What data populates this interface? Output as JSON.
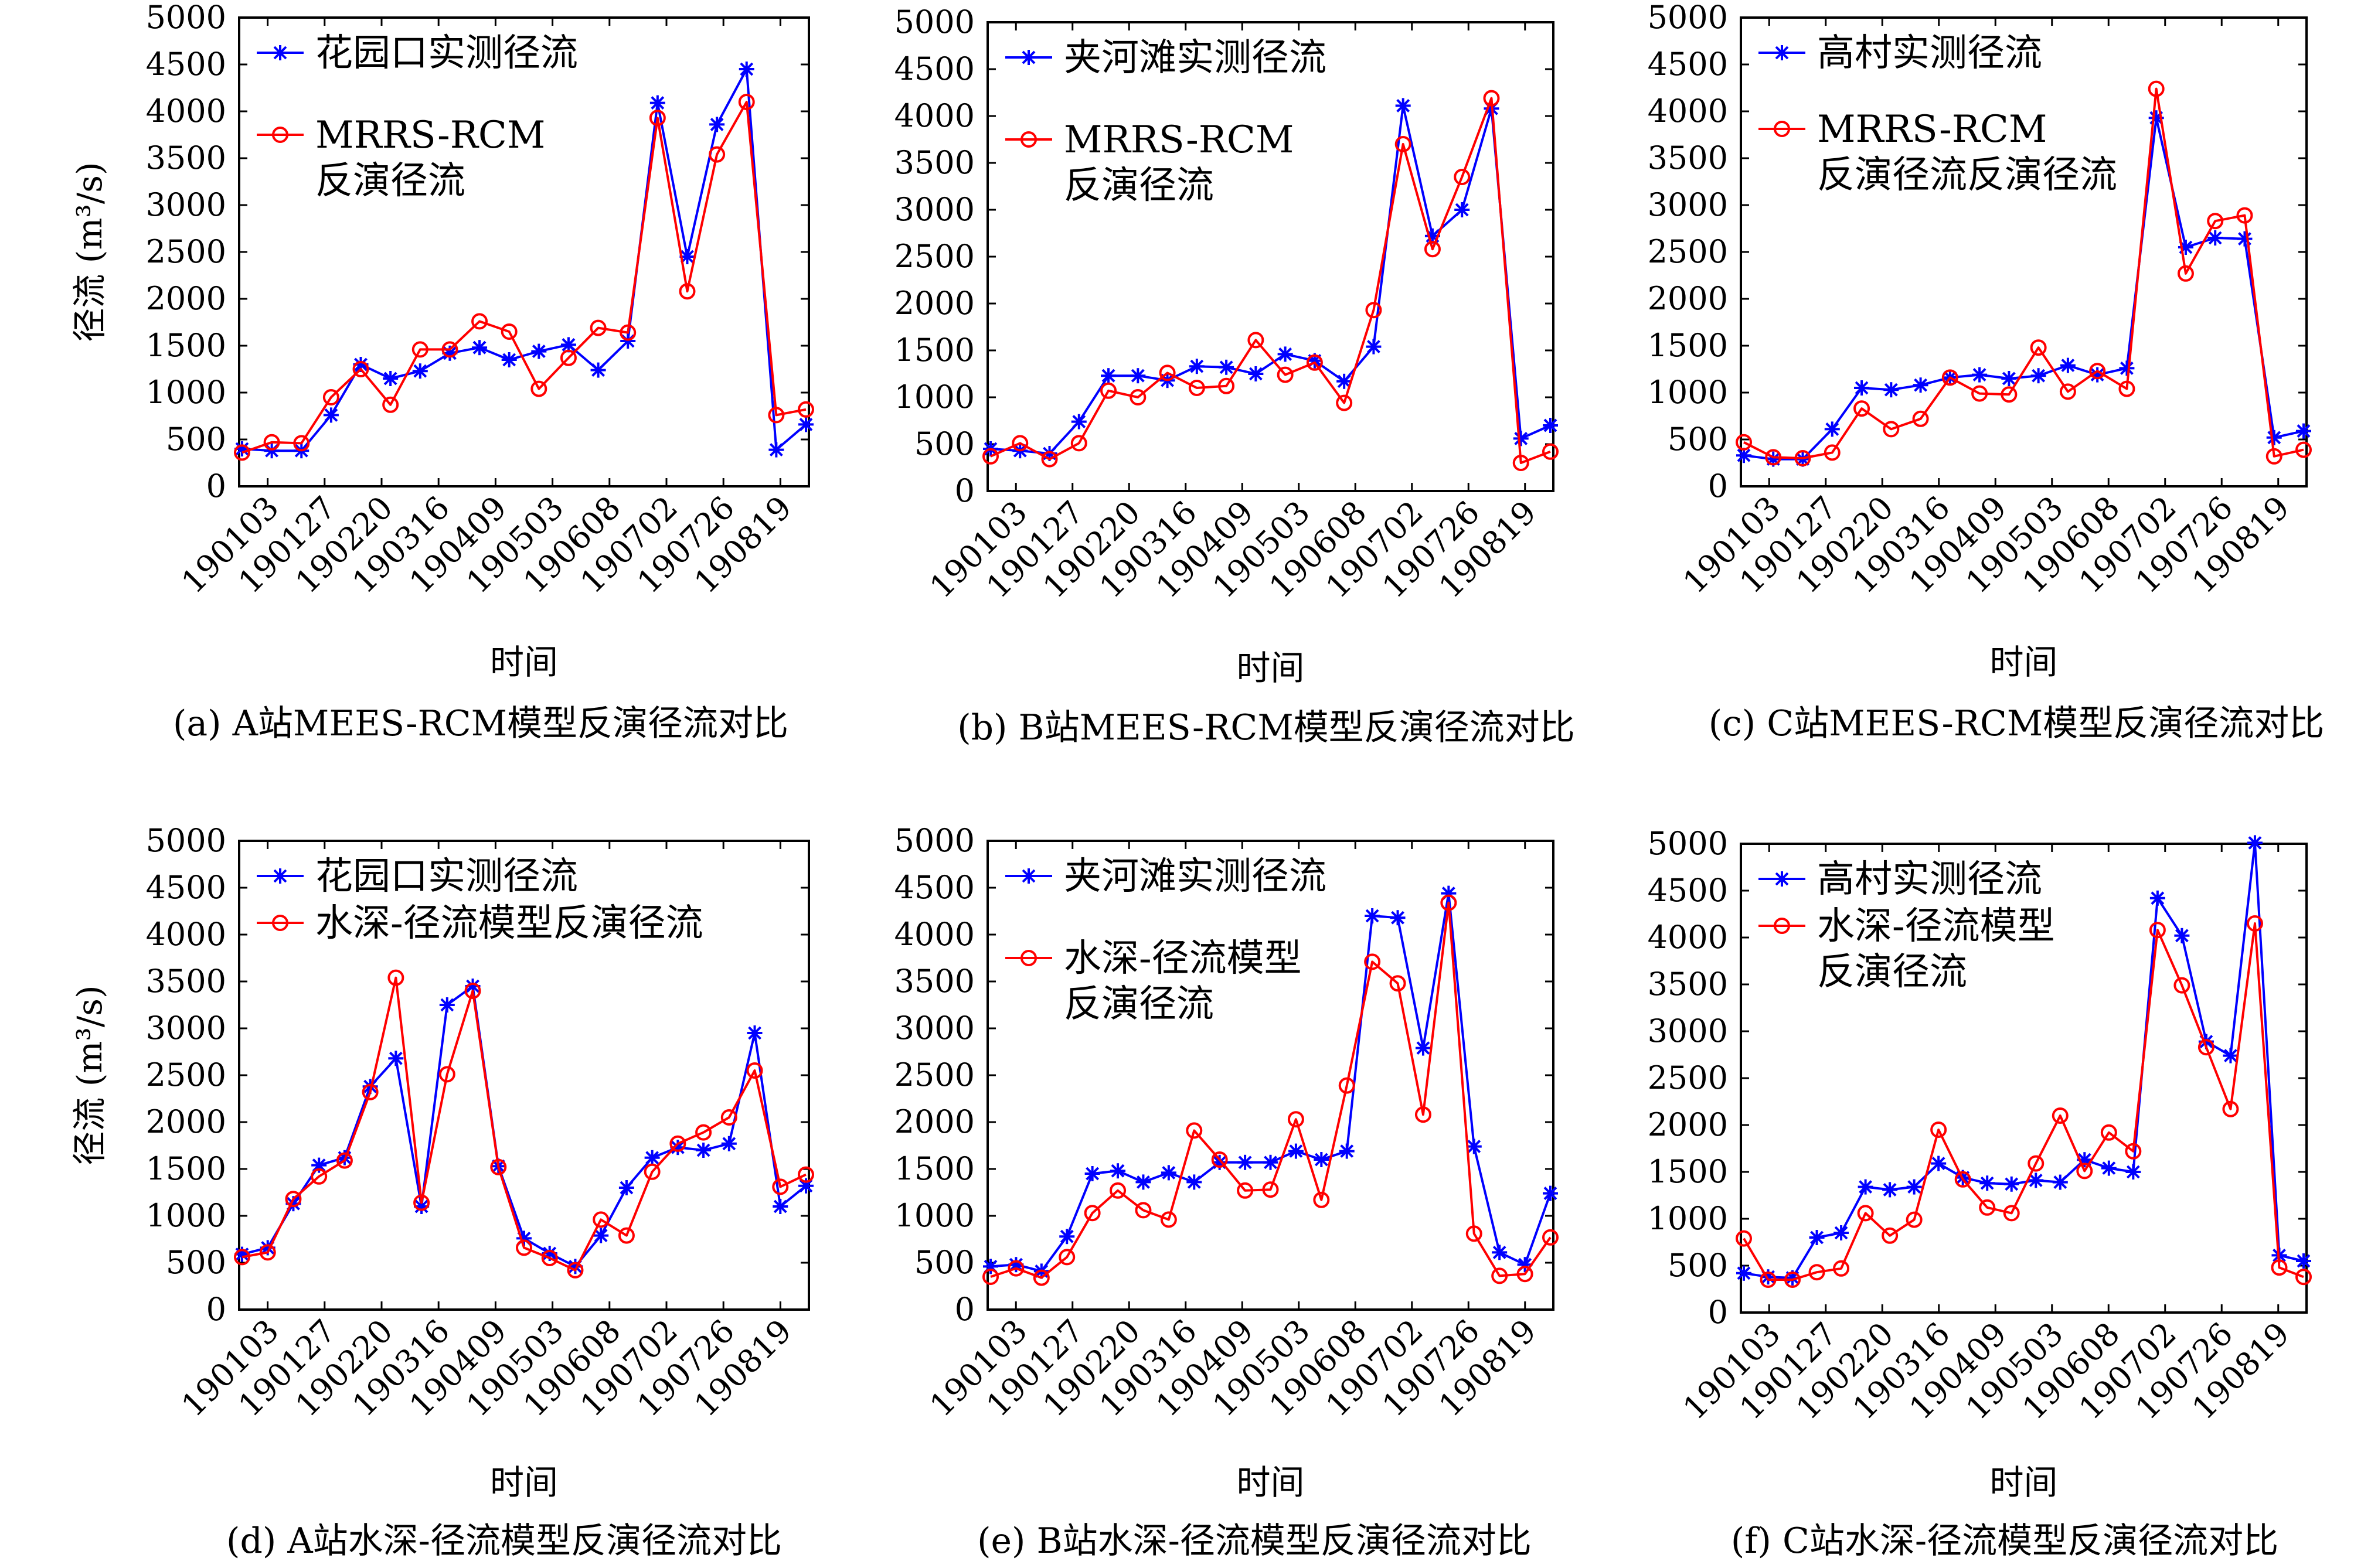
{
  "colors": {
    "observed": "#0000ff",
    "model": "#ff0000",
    "axis": "#000000"
  },
  "markers": {
    "observed": "asterisk",
    "model": "circle"
  },
  "chart_data": [
    {
      "type": "line",
      "caption": "(a) A站MEES-RCM模型反演径流对比",
      "xlabel": "时间",
      "ylabel": "径流 (m³/s)",
      "ylim": [
        0,
        5000
      ],
      "yticks": [
        0,
        500,
        1000,
        1500,
        2000,
        2500,
        3000,
        3500,
        4000,
        4500,
        5000
      ],
      "xticks": [
        "190103",
        "190127",
        "190220",
        "190316",
        "190409",
        "190503",
        "190608",
        "190702",
        "190726",
        "190819"
      ],
      "legend": {
        "position": "top-left",
        "entries": [
          "花园口实测径流",
          "MRRS-RCM\n反演径流"
        ]
      },
      "series": [
        {
          "name": "花园口实测径流",
          "values": [
            400,
            380,
            380,
            760,
            1300,
            1150,
            1230,
            1420,
            1480,
            1350,
            1440,
            1510,
            1240,
            1550,
            4090,
            2450,
            3860,
            4450,
            390,
            660
          ]
        },
        {
          "name": "MRRS-RCM\n反演径流",
          "values": [
            360,
            470,
            460,
            950,
            1250,
            870,
            1460,
            1460,
            1760,
            1650,
            1040,
            1370,
            1690,
            1640,
            3930,
            2080,
            3540,
            4100,
            760,
            820
          ]
        }
      ]
    },
    {
      "type": "line",
      "caption": "(b) B站MEES-RCM模型反演径流对比",
      "xlabel": "时间",
      "ylabel": "",
      "ylim": [
        0,
        5000
      ],
      "yticks": [
        0,
        500,
        1000,
        1500,
        2000,
        2500,
        3000,
        3500,
        4000,
        4500,
        5000
      ],
      "xticks": [
        "190103",
        "190127",
        "190220",
        "190316",
        "190409",
        "190503",
        "190608",
        "190702",
        "190726",
        "190819"
      ],
      "legend": {
        "position": "top-left",
        "entries": [
          "夹河滩实测径流",
          "MRRS-RCM\n反演径流"
        ]
      },
      "series": [
        {
          "name": "夹河滩实测径流",
          "values": [
            450,
            430,
            400,
            740,
            1230,
            1230,
            1180,
            1330,
            1320,
            1250,
            1460,
            1390,
            1170,
            1540,
            4110,
            2720,
            3000,
            4080,
            560,
            700
          ]
        },
        {
          "name": "MRRS-RCM\n反演径流",
          "values": [
            370,
            510,
            340,
            510,
            1070,
            1000,
            1260,
            1100,
            1120,
            1610,
            1240,
            1370,
            940,
            1930,
            3700,
            2580,
            3350,
            4190,
            300,
            420
          ]
        }
      ]
    },
    {
      "type": "line",
      "caption": "(c) C站MEES-RCM模型反演径流对比",
      "xlabel": "时间",
      "ylabel": "",
      "ylim": [
        0,
        5000
      ],
      "yticks": [
        0,
        500,
        1000,
        1500,
        2000,
        2500,
        3000,
        3500,
        4000,
        4500,
        5000
      ],
      "xticks": [
        "190103",
        "190127",
        "190220",
        "190316",
        "190409",
        "190503",
        "190608",
        "190702",
        "190726",
        "190819"
      ],
      "legend": {
        "position": "top-left",
        "entries": [
          "高村实测径流",
          "MRRS-RCM\n反演径流反演径流"
        ]
      },
      "series": [
        {
          "name": "高村实测径流",
          "values": [
            330,
            290,
            290,
            610,
            1050,
            1030,
            1080,
            1160,
            1190,
            1150,
            1180,
            1290,
            1190,
            1260,
            3930,
            2550,
            2650,
            2640,
            520,
            590
          ]
        },
        {
          "name": "MRRS-RCM\n反演径流反演径流",
          "values": [
            470,
            310,
            300,
            360,
            830,
            610,
            720,
            1160,
            990,
            980,
            1480,
            1010,
            1230,
            1040,
            4240,
            2270,
            2830,
            2890,
            320,
            390
          ]
        }
      ]
    },
    {
      "type": "line",
      "caption": "(d) A站水深-径流模型反演径流对比",
      "xlabel": "时间",
      "ylabel": "径流 (m³/s)",
      "ylim": [
        0,
        5000
      ],
      "yticks": [
        0,
        500,
        1000,
        1500,
        2000,
        2500,
        3000,
        3500,
        4000,
        4500,
        5000
      ],
      "xticks": [
        "190103",
        "190127",
        "190220",
        "190316",
        "190409",
        "190503",
        "190608",
        "190702",
        "190726",
        "190819"
      ],
      "legend": {
        "position": "top-left",
        "entries": [
          "花园口实测径流",
          "水深-径流模型反演径流"
        ]
      },
      "series": [
        {
          "name": "花园口实测径流",
          "values": [
            590,
            660,
            1130,
            1540,
            1620,
            2380,
            2680,
            1100,
            3250,
            3450,
            1530,
            760,
            600,
            460,
            790,
            1300,
            1620,
            1730,
            1700,
            1770,
            2950,
            1100,
            1320
          ]
        },
        {
          "name": "水深-径流模型反演径流",
          "values": [
            560,
            610,
            1180,
            1420,
            1590,
            2320,
            3540,
            1140,
            2510,
            3400,
            1520,
            660,
            550,
            420,
            960,
            790,
            1470,
            1770,
            1890,
            2050,
            2550,
            1310,
            1440
          ]
        }
      ]
    },
    {
      "type": "line",
      "caption": "(e) B站水深-径流模型反演径流对比",
      "xlabel": "时间",
      "ylabel": "",
      "ylim": [
        0,
        5000
      ],
      "yticks": [
        0,
        500,
        1000,
        1500,
        2000,
        2500,
        3000,
        3500,
        4000,
        4500,
        5000
      ],
      "xticks": [
        "190103",
        "190127",
        "190220",
        "190316",
        "190409",
        "190503",
        "190608",
        "190702",
        "190726",
        "190819"
      ],
      "legend": {
        "position": "top-left",
        "entries": [
          "夹河滩实测径流",
          "水深-径流模型\n反演径流"
        ]
      },
      "series": [
        {
          "name": "夹河滩实测径流",
          "values": [
            460,
            480,
            410,
            780,
            1450,
            1480,
            1360,
            1460,
            1360,
            1570,
            1570,
            1570,
            1690,
            1600,
            1690,
            4200,
            4180,
            2790,
            4440,
            1740,
            610,
            480,
            1240
          ]
        },
        {
          "name": "水深-径流模型\n反演径流",
          "values": [
            350,
            440,
            340,
            560,
            1030,
            1270,
            1060,
            960,
            1910,
            1600,
            1270,
            1280,
            2030,
            1170,
            2390,
            3710,
            3480,
            2080,
            4340,
            810,
            360,
            380,
            770
          ]
        }
      ]
    },
    {
      "type": "line",
      "caption": "(f) C站水深-径流模型反演径流对比",
      "xlabel": "时间",
      "ylabel": "",
      "ylim": [
        0,
        5000
      ],
      "yticks": [
        0,
        500,
        1000,
        1500,
        2000,
        2500,
        3000,
        3500,
        4000,
        4500,
        5000
      ],
      "xticks": [
        "190103",
        "190127",
        "190220",
        "190316",
        "190409",
        "190503",
        "190608",
        "190702",
        "190726",
        "190819"
      ],
      "legend": {
        "position": "top-left",
        "entries": [
          "高村实测径流",
          "水深-径流模型\n反演径流"
        ]
      },
      "series": [
        {
          "name": "高村实测径流",
          "values": [
            420,
            380,
            370,
            800,
            850,
            1340,
            1310,
            1340,
            1590,
            1440,
            1380,
            1370,
            1410,
            1390,
            1630,
            1540,
            1500,
            4420,
            4020,
            2890,
            2740,
            5010,
            610,
            550
          ]
        },
        {
          "name": "水深-径流模型\n反演径流",
          "values": [
            790,
            350,
            350,
            430,
            470,
            1060,
            820,
            990,
            1950,
            1420,
            1120,
            1060,
            1590,
            2100,
            1510,
            1920,
            1720,
            4080,
            3490,
            2830,
            2170,
            4150,
            480,
            380
          ]
        }
      ]
    }
  ]
}
